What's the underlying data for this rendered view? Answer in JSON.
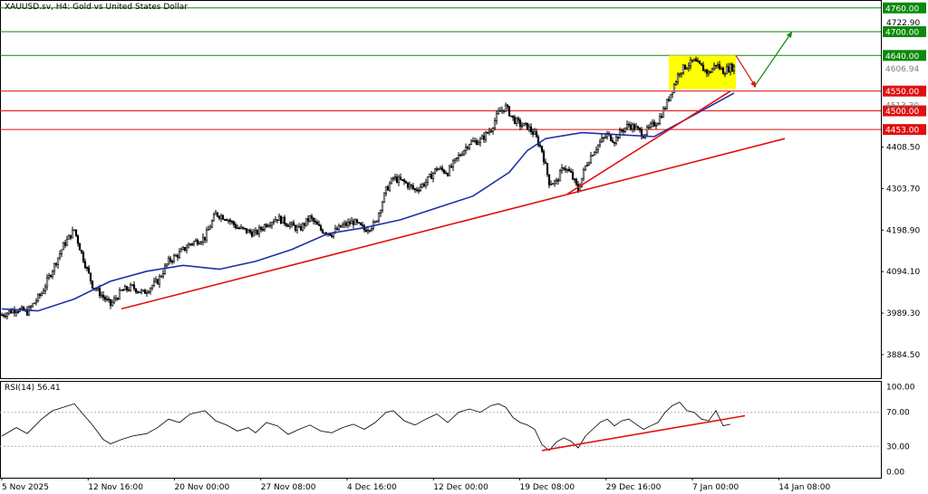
{
  "header": {
    "symbol_title": "XAUUSD.sv, H4:  Gold vs United States Dollar"
  },
  "rsi_panel": {
    "title": "RSI(14) 56.41",
    "period": 14,
    "value": 56.41
  },
  "colors": {
    "candles": "#000000",
    "moving_average": "#1f2fa8",
    "resistance_green": "#0a8a0a",
    "support_red": "#e01010",
    "trendline": "#e01010",
    "consolidation_box": "#ffff00",
    "arrow_up": "#0a8a0a",
    "arrow_down": "#e01010",
    "rsi_line": "#000000"
  },
  "chart_data": [
    {
      "type": "candlestick",
      "title": "XAUUSD.sv, H4:  Gold vs United States Dollar",
      "x_ticks": [
        "5 Nov 2025",
        "12 Nov 16:00",
        "20 Nov 00:00",
        "27 Nov 08:00",
        "4 Dec 16:00",
        "12 Dec 00:00",
        "19 Dec 08:00",
        "29 Dec 16:00",
        "7 Jan 00:00",
        "14 Jan 08:00"
      ],
      "y_ticks": [
        3884.5,
        3989.3,
        4094.1,
        4198.9,
        4303.7,
        4408.5
      ],
      "ylim": [
        3825,
        4780
      ],
      "current_price": 4606.94,
      "price_labels": [
        "4606.94",
        "4513.30"
      ],
      "horizontal_levels": [
        {
          "value": 4760.0,
          "label": "4760.00",
          "kind": "resistance"
        },
        {
          "value": 4722.9,
          "label": "4722.90",
          "kind": "axis"
        },
        {
          "value": 4700.0,
          "label": "4700.00",
          "kind": "resistance"
        },
        {
          "value": 4640.0,
          "label": "4640.00",
          "kind": "resistance"
        },
        {
          "value": 4550.0,
          "label": "4550.00",
          "kind": "support"
        },
        {
          "value": 4500.0,
          "label": "4500.00",
          "kind": "support"
        },
        {
          "value": 4453.0,
          "label": "4453.00",
          "kind": "support"
        }
      ],
      "close_path": [
        [
          0,
          3985
        ],
        [
          8,
          4000
        ],
        [
          14,
          3992
        ],
        [
          22,
          4040
        ],
        [
          28,
          4100
        ],
        [
          34,
          4160
        ],
        [
          40,
          4200
        ],
        [
          44,
          4140
        ],
        [
          50,
          4060
        ],
        [
          56,
          4030
        ],
        [
          60,
          4010
        ],
        [
          66,
          4045
        ],
        [
          72,
          4055
        ],
        [
          78,
          4040
        ],
        [
          86,
          4070
        ],
        [
          92,
          4120
        ],
        [
          98,
          4140
        ],
        [
          104,
          4165
        ],
        [
          112,
          4180
        ],
        [
          118,
          4240
        ],
        [
          124,
          4230
        ],
        [
          130,
          4205
        ],
        [
          136,
          4195
        ],
        [
          140,
          4190
        ],
        [
          146,
          4215
        ],
        [
          152,
          4230
        ],
        [
          158,
          4215
        ],
        [
          164,
          4200
        ],
        [
          170,
          4230
        ],
        [
          176,
          4200
        ],
        [
          182,
          4190
        ],
        [
          188,
          4210
        ],
        [
          194,
          4220
        ],
        [
          200,
          4200
        ],
        [
          206,
          4215
        ],
        [
          212,
          4300
        ],
        [
          216,
          4330
        ],
        [
          222,
          4320
        ],
        [
          228,
          4300
        ],
        [
          234,
          4320
        ],
        [
          240,
          4355
        ],
        [
          246,
          4345
        ],
        [
          252,
          4385
        ],
        [
          258,
          4420
        ],
        [
          264,
          4425
        ],
        [
          270,
          4455
        ],
        [
          274,
          4495
        ],
        [
          278,
          4510
        ],
        [
          282,
          4480
        ],
        [
          286,
          4465
        ],
        [
          290,
          4460
        ],
        [
          294,
          4440
        ],
        [
          298,
          4400
        ],
        [
          302,
          4320
        ],
        [
          306,
          4320
        ],
        [
          310,
          4360
        ],
        [
          314,
          4340
        ],
        [
          318,
          4300
        ],
        [
          322,
          4360
        ],
        [
          326,
          4395
        ],
        [
          330,
          4420
        ],
        [
          334,
          4440
        ],
        [
          338,
          4425
        ],
        [
          342,
          4450
        ],
        [
          346,
          4465
        ],
        [
          350,
          4455
        ],
        [
          354,
          4440
        ],
        [
          358,
          4460
        ],
        [
          362,
          4475
        ],
        [
          366,
          4510
        ],
        [
          370,
          4555
        ],
        [
          374,
          4600
        ],
        [
          378,
          4615
        ],
        [
          382,
          4625
        ],
        [
          386,
          4610
        ],
        [
          390,
          4595
        ],
        [
          394,
          4618
        ],
        [
          398,
          4600
        ],
        [
          402,
          4610
        ]
      ],
      "moving_average": [
        [
          0,
          4000
        ],
        [
          20,
          3995
        ],
        [
          40,
          4025
        ],
        [
          60,
          4070
        ],
        [
          80,
          4095
        ],
        [
          100,
          4110
        ],
        [
          120,
          4100
        ],
        [
          140,
          4120
        ],
        [
          160,
          4150
        ],
        [
          180,
          4190
        ],
        [
          200,
          4205
        ],
        [
          220,
          4225
        ],
        [
          240,
          4255
        ],
        [
          260,
          4285
        ],
        [
          280,
          4345
        ],
        [
          290,
          4400
        ],
        [
          300,
          4430
        ],
        [
          320,
          4445
        ],
        [
          340,
          4440
        ],
        [
          360,
          4435
        ],
        [
          370,
          4460
        ],
        [
          390,
          4510
        ],
        [
          404,
          4545
        ]
      ],
      "trendlines": [
        {
          "from": [
            66,
            4000
          ],
          "to": [
            432,
            4430
          ]
        },
        {
          "from": [
            312,
            4290
          ],
          "to": [
            402,
            4550
          ]
        }
      ],
      "consolidation_box": {
        "x_from": 368,
        "x_to": 405,
        "y_from": 4555,
        "y_to": 4640
      },
      "arrows": [
        {
          "direction": "up",
          "from": [
            415,
            4560
          ],
          "to": [
            436,
            4700
          ]
        },
        {
          "direction": "down",
          "from": [
            405,
            4640
          ],
          "to": [
            416,
            4560
          ]
        }
      ]
    },
    {
      "type": "line",
      "title": "RSI(14) 56.41",
      "y_ticks": [
        0.0,
        30.0,
        70.0,
        100.0
      ],
      "ylim": [
        -7,
        107
      ],
      "levels": [
        30,
        70
      ],
      "current_value": 56.41,
      "values": [
        [
          0,
          42
        ],
        [
          8,
          52
        ],
        [
          14,
          45
        ],
        [
          22,
          62
        ],
        [
          28,
          72
        ],
        [
          34,
          76
        ],
        [
          40,
          80
        ],
        [
          44,
          70
        ],
        [
          50,
          55
        ],
        [
          56,
          38
        ],
        [
          60,
          33
        ],
        [
          66,
          38
        ],
        [
          72,
          42
        ],
        [
          80,
          45
        ],
        [
          86,
          52
        ],
        [
          92,
          62
        ],
        [
          98,
          58
        ],
        [
          104,
          68
        ],
        [
          112,
          72
        ],
        [
          118,
          60
        ],
        [
          124,
          55
        ],
        [
          130,
          48
        ],
        [
          136,
          52
        ],
        [
          140,
          46
        ],
        [
          146,
          58
        ],
        [
          152,
          54
        ],
        [
          158,
          44
        ],
        [
          164,
          50
        ],
        [
          170,
          55
        ],
        [
          176,
          48
        ],
        [
          182,
          46
        ],
        [
          188,
          52
        ],
        [
          194,
          56
        ],
        [
          200,
          50
        ],
        [
          206,
          58
        ],
        [
          212,
          70
        ],
        [
          216,
          72
        ],
        [
          222,
          60
        ],
        [
          228,
          55
        ],
        [
          234,
          62
        ],
        [
          240,
          68
        ],
        [
          246,
          58
        ],
        [
          252,
          70
        ],
        [
          258,
          74
        ],
        [
          264,
          70
        ],
        [
          270,
          78
        ],
        [
          274,
          80
        ],
        [
          278,
          76
        ],
        [
          282,
          64
        ],
        [
          286,
          58
        ],
        [
          290,
          55
        ],
        [
          294,
          50
        ],
        [
          298,
          32
        ],
        [
          302,
          25
        ],
        [
          306,
          35
        ],
        [
          310,
          40
        ],
        [
          314,
          36
        ],
        [
          318,
          28
        ],
        [
          322,
          42
        ],
        [
          326,
          50
        ],
        [
          330,
          58
        ],
        [
          334,
          62
        ],
        [
          338,
          54
        ],
        [
          342,
          60
        ],
        [
          346,
          62
        ],
        [
          350,
          56
        ],
        [
          354,
          50
        ],
        [
          358,
          54
        ],
        [
          362,
          58
        ],
        [
          366,
          70
        ],
        [
          370,
          78
        ],
        [
          374,
          82
        ],
        [
          378,
          72
        ],
        [
          382,
          70
        ],
        [
          386,
          62
        ],
        [
          390,
          60
        ],
        [
          394,
          72
        ],
        [
          398,
          54
        ],
        [
          402,
          56
        ]
      ],
      "trendline": {
        "from": [
          298,
          25
        ],
        "to": [
          410,
          66
        ]
      }
    }
  ]
}
